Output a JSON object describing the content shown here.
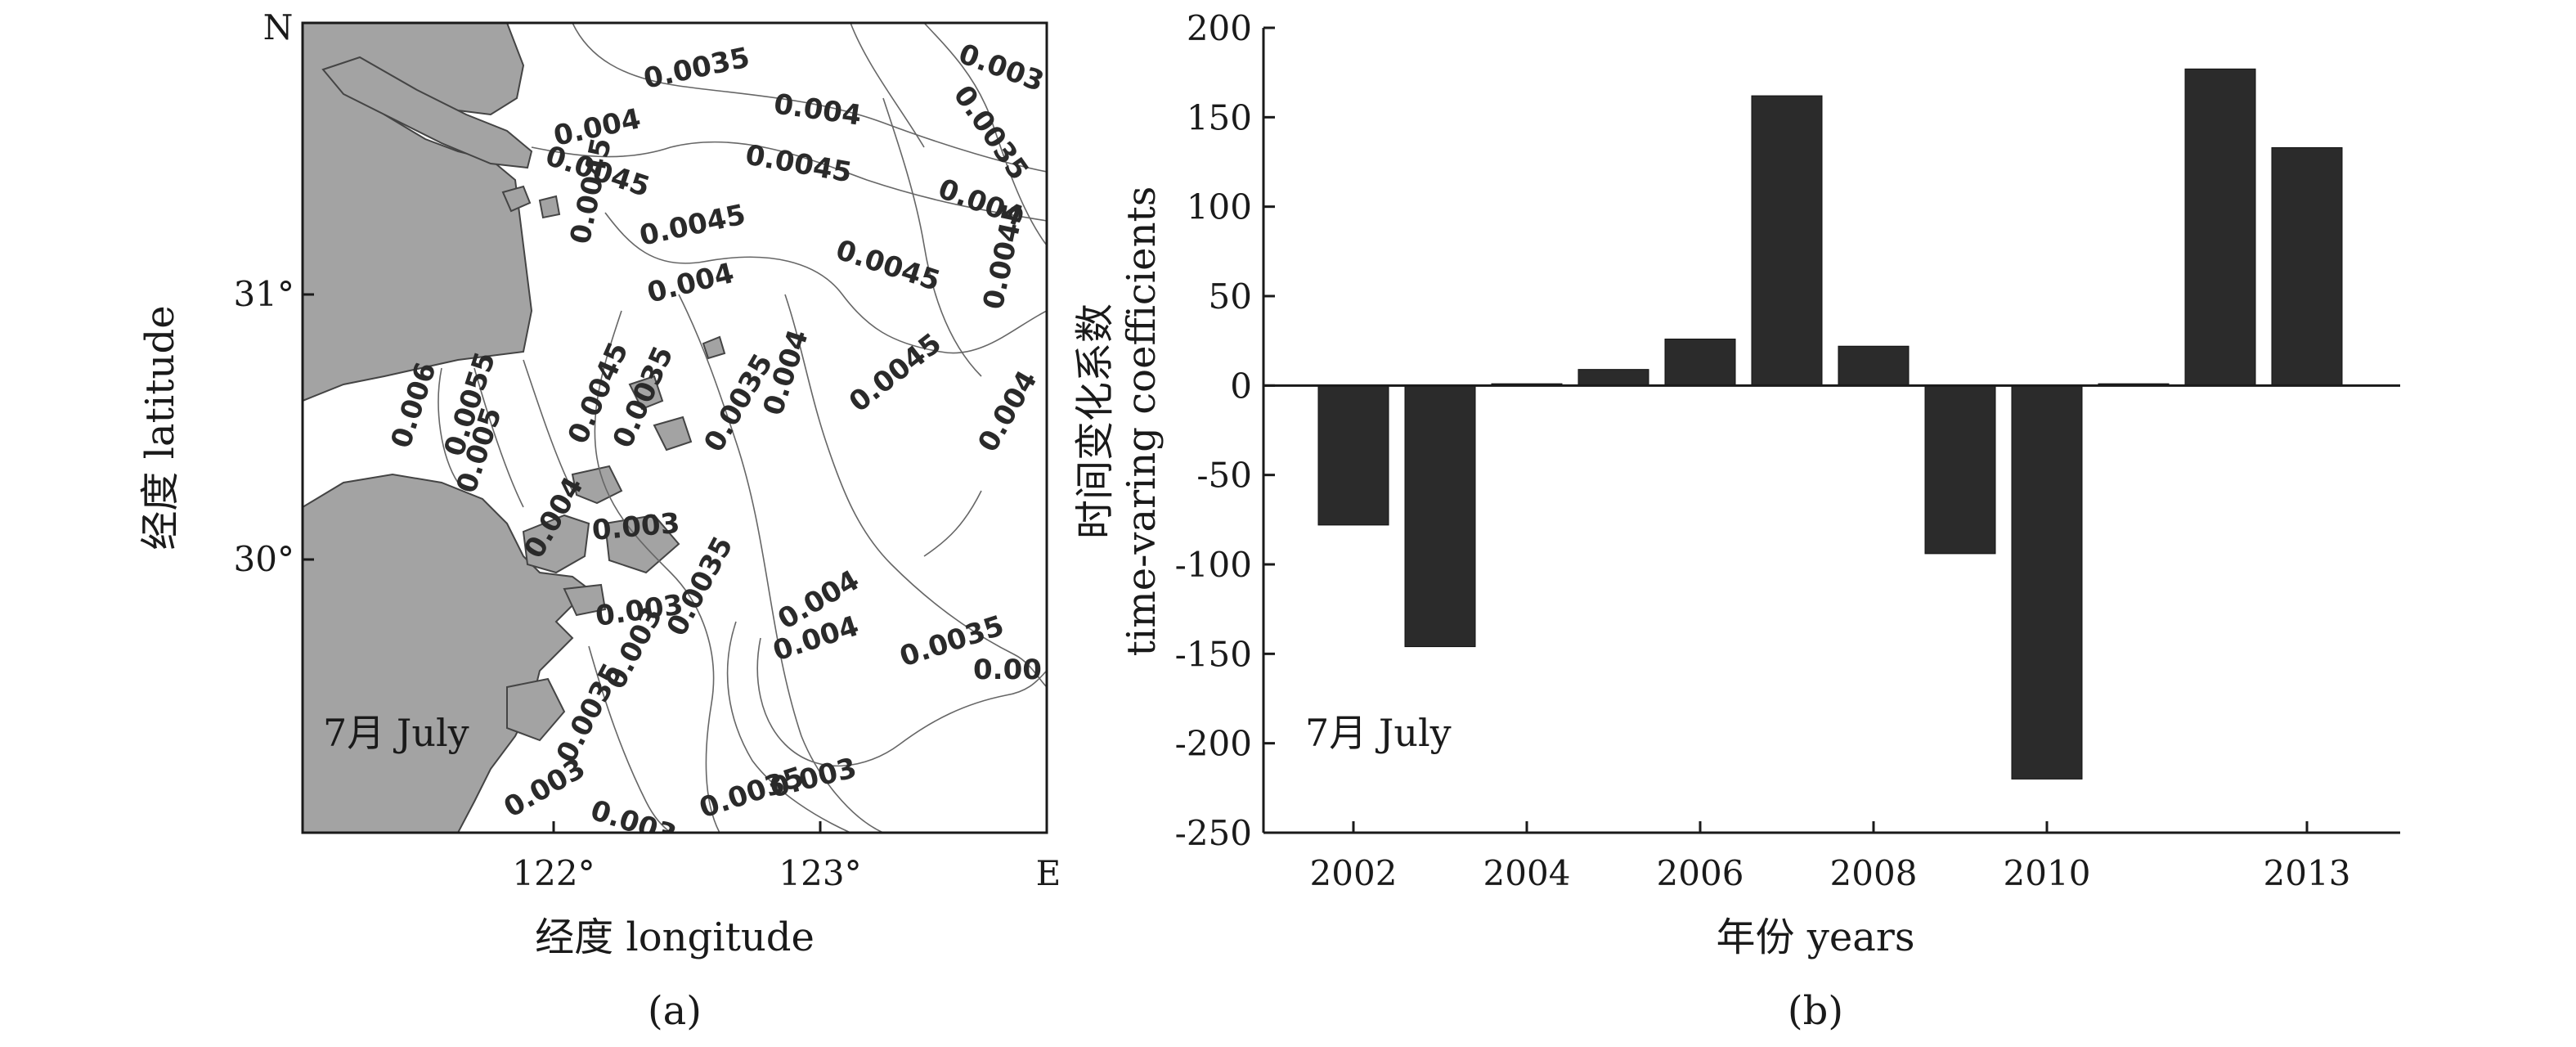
{
  "panel_a": {
    "label": "(a)",
    "month": "7月 July",
    "north_label": "N",
    "east_label": "E",
    "ylabel": "经度 latitude",
    "xlabel": "经度 longitude",
    "lat_ticks": [
      "31°",
      "30°"
    ],
    "lon_ticks": [
      "122°",
      "123°"
    ],
    "contour_labels": [
      "0.0035",
      "0.003",
      "0.004",
      "0.004",
      "0.0035",
      "0.0045",
      "0.0045",
      "0.004",
      "0.0045",
      "0.0045",
      "0.0045",
      "0.0045",
      "0.004",
      "0.006",
      "0.0055",
      "0.005",
      "0.0045",
      "0.0035",
      "0.0035",
      "0.004",
      "0.0045",
      "0.004",
      "0.004",
      "0.003",
      "0.0035",
      "0.003",
      "0.004",
      "0.004",
      "0.0035",
      "0.00",
      "0.003",
      "0.0035",
      "0.0035",
      "0.003",
      "0.003",
      "0.003"
    ]
  },
  "panel_b": {
    "label": "(b)",
    "month": "7月 July",
    "chart_data": {
      "type": "bar",
      "categories": [
        "2002",
        "2003",
        "2004",
        "2005",
        "2006",
        "2007",
        "2008",
        "2009",
        "2010",
        "2011",
        "2012",
        "2013"
      ],
      "values": [
        -78,
        -146,
        1,
        9,
        26,
        162,
        22,
        -94,
        -220,
        1,
        177,
        133
      ],
      "x_tick_labels": [
        "2002",
        "2004",
        "2006",
        "2008",
        "2010",
        "2013"
      ],
      "y_ticks": [
        "200",
        "150",
        "100",
        "50",
        "0",
        "-50",
        "-100",
        "-150",
        "-200",
        "-250"
      ],
      "ylim": [
        -250,
        200
      ],
      "xlabel": "年份 years",
      "ylabel": [
        "时间变化系数",
        "time-varing coefficients"
      ],
      "bar_color": "#2b2b2b",
      "grid": false
    }
  }
}
